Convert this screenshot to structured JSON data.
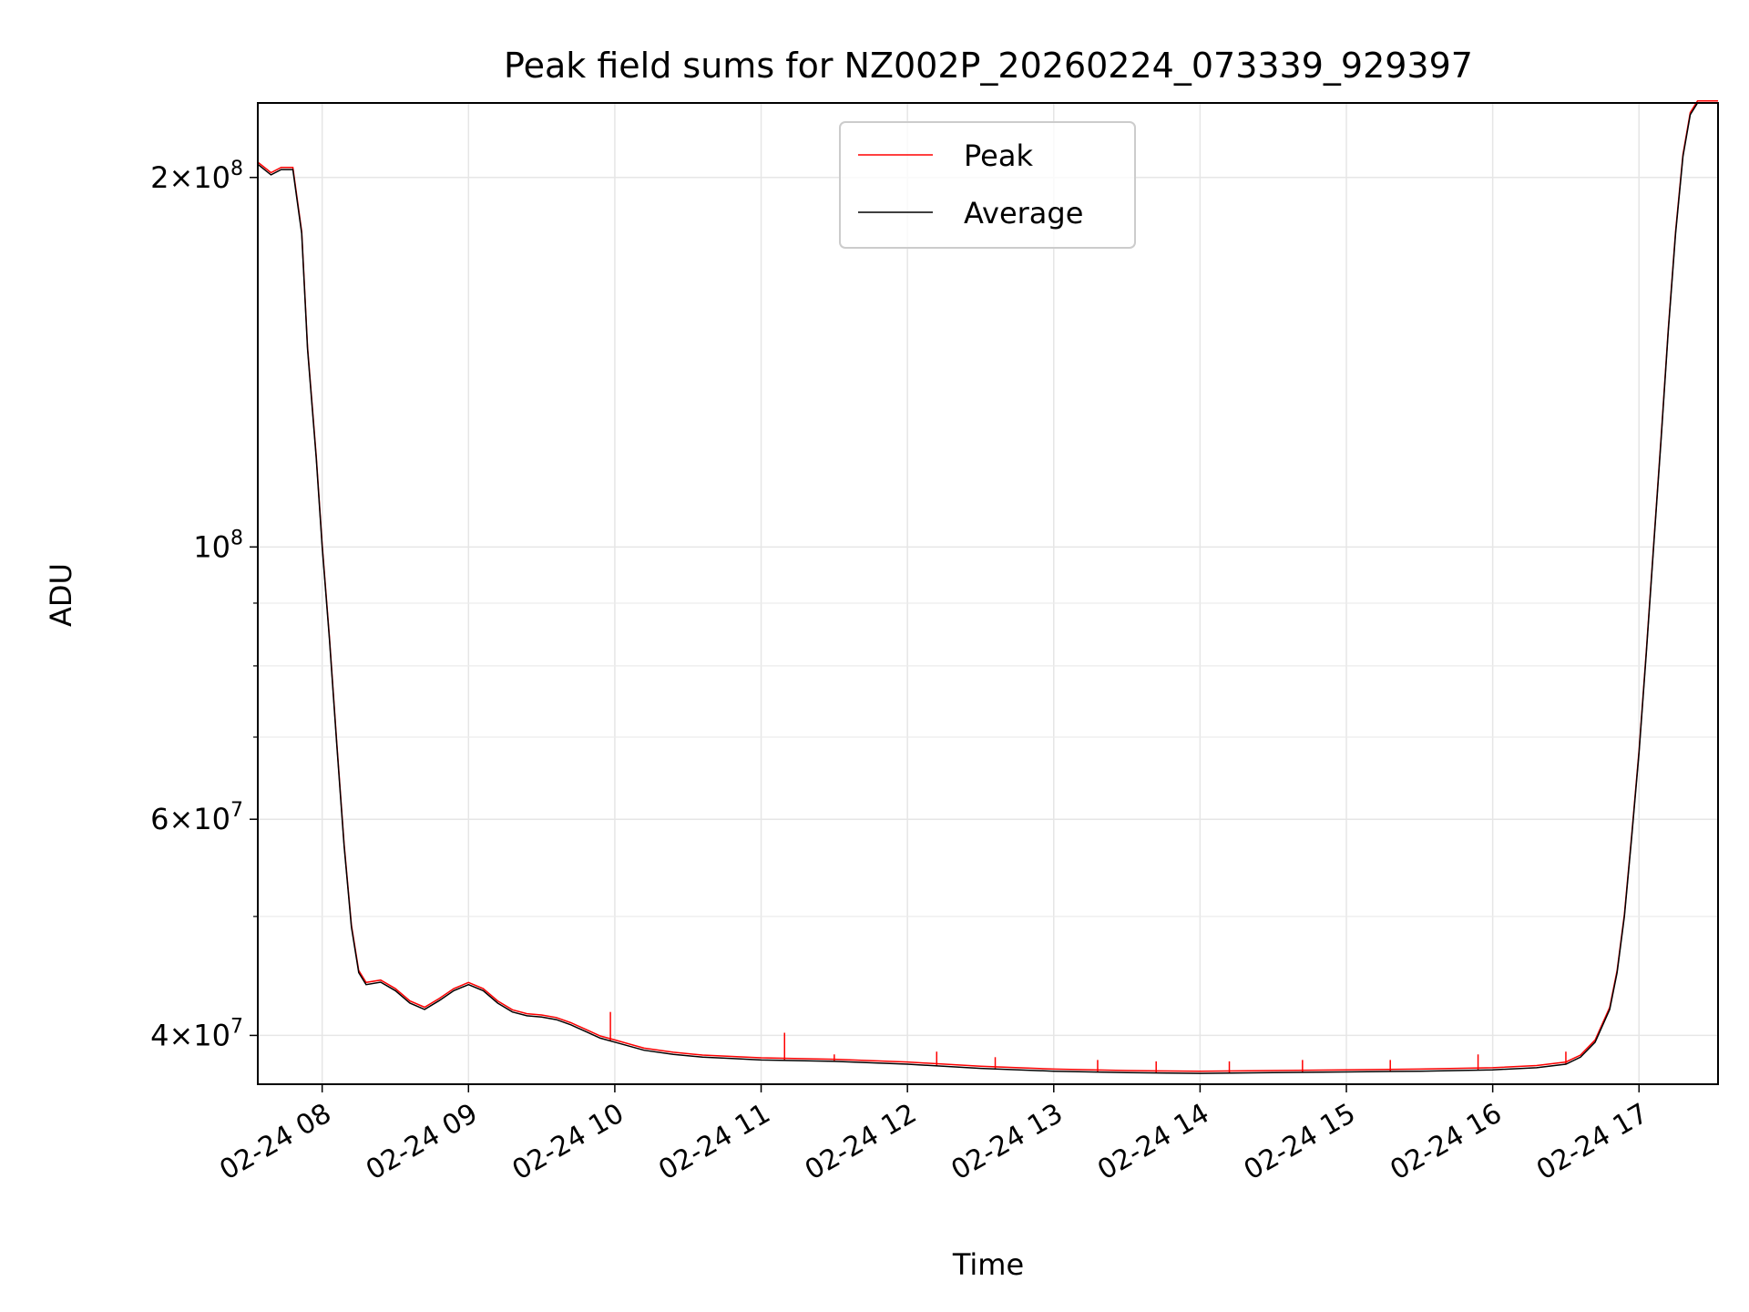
{
  "chart_data": {
    "type": "line",
    "title": "Peak field sums for NZ002P_20260224_073339_929397",
    "xlabel": "Time",
    "ylabel": "ADU",
    "yscale": "log",
    "ylim": [
      36500000,
      230000000
    ],
    "xlim_hours": [
      7.56,
      17.54
    ],
    "grid": true,
    "legend_position": "upper center",
    "x_tick_labels": [
      "02-24 08",
      "02-24 09",
      "02-24 10",
      "02-24 11",
      "02-24 12",
      "02-24 13",
      "02-24 14",
      "02-24 15",
      "02-24 16",
      "02-24 17"
    ],
    "x_tick_hours": [
      8,
      9,
      10,
      11,
      12,
      13,
      14,
      15,
      16,
      17
    ],
    "y_major_ticks": [
      {
        "value": 40000000,
        "mantissa": "4",
        "exp": "7"
      },
      {
        "value": 60000000,
        "mantissa": "6",
        "exp": "7"
      },
      {
        "value": 100000000,
        "mantissa": "",
        "exp": "8"
      },
      {
        "value": 200000000,
        "mantissa": "2",
        "exp": "8"
      }
    ],
    "y_minor_ticks": [
      50000000,
      70000000,
      80000000,
      90000000
    ],
    "series": [
      {
        "name": "Peak",
        "color": "#ff0000",
        "spikes": [
          {
            "x": 9.97,
            "y": 41800000
          },
          {
            "x": 11.16,
            "y": 40200000
          },
          {
            "x": 11.5,
            "y": 38600000
          },
          {
            "x": 12.2,
            "y": 38800000
          },
          {
            "x": 12.6,
            "y": 38400000
          },
          {
            "x": 13.3,
            "y": 38200000
          },
          {
            "x": 13.7,
            "y": 38100000
          },
          {
            "x": 14.2,
            "y": 38100000
          },
          {
            "x": 14.7,
            "y": 38200000
          },
          {
            "x": 15.3,
            "y": 38200000
          },
          {
            "x": 15.9,
            "y": 38600000
          },
          {
            "x": 16.5,
            "y": 38800000
          }
        ]
      },
      {
        "name": "Average",
        "color": "#000000",
        "x_hours": [
          7.56,
          7.65,
          7.72,
          7.8,
          7.86,
          7.9,
          7.96,
          8.0,
          8.05,
          8.1,
          8.15,
          8.2,
          8.25,
          8.3,
          8.4,
          8.5,
          8.6,
          8.7,
          8.8,
          8.9,
          9.0,
          9.1,
          9.2,
          9.3,
          9.4,
          9.5,
          9.6,
          9.7,
          9.8,
          9.9,
          10.0,
          10.2,
          10.4,
          10.6,
          10.8,
          11.0,
          11.5,
          12.0,
          12.5,
          13.0,
          13.5,
          14.0,
          14.5,
          15.0,
          15.5,
          16.0,
          16.3,
          16.5,
          16.6,
          16.7,
          16.8,
          16.85,
          16.9,
          16.95,
          17.0,
          17.05,
          17.1,
          17.15,
          17.2,
          17.25,
          17.3,
          17.35,
          17.4,
          17.45,
          17.54
        ],
        "values": [
          205000000,
          201000000,
          203000000,
          203000000,
          180000000,
          145000000,
          118000000,
          100000000,
          84000000,
          69000000,
          57000000,
          49000000,
          45000000,
          44000000,
          44200000,
          43500000,
          42500000,
          42000000,
          42700000,
          43500000,
          44000000,
          43500000,
          42500000,
          41800000,
          41500000,
          41400000,
          41200000,
          40800000,
          40300000,
          39800000,
          39500000,
          38900000,
          38600000,
          38400000,
          38300000,
          38200000,
          38100000,
          37900000,
          37600000,
          37400000,
          37300000,
          37250000,
          37300000,
          37350000,
          37400000,
          37500000,
          37650000,
          37900000,
          38400000,
          39500000,
          42000000,
          45000000,
          50000000,
          58000000,
          68000000,
          82000000,
          100000000,
          122000000,
          150000000,
          180000000,
          208000000,
          225000000,
          230000000,
          230000000,
          230000000
        ]
      }
    ]
  }
}
